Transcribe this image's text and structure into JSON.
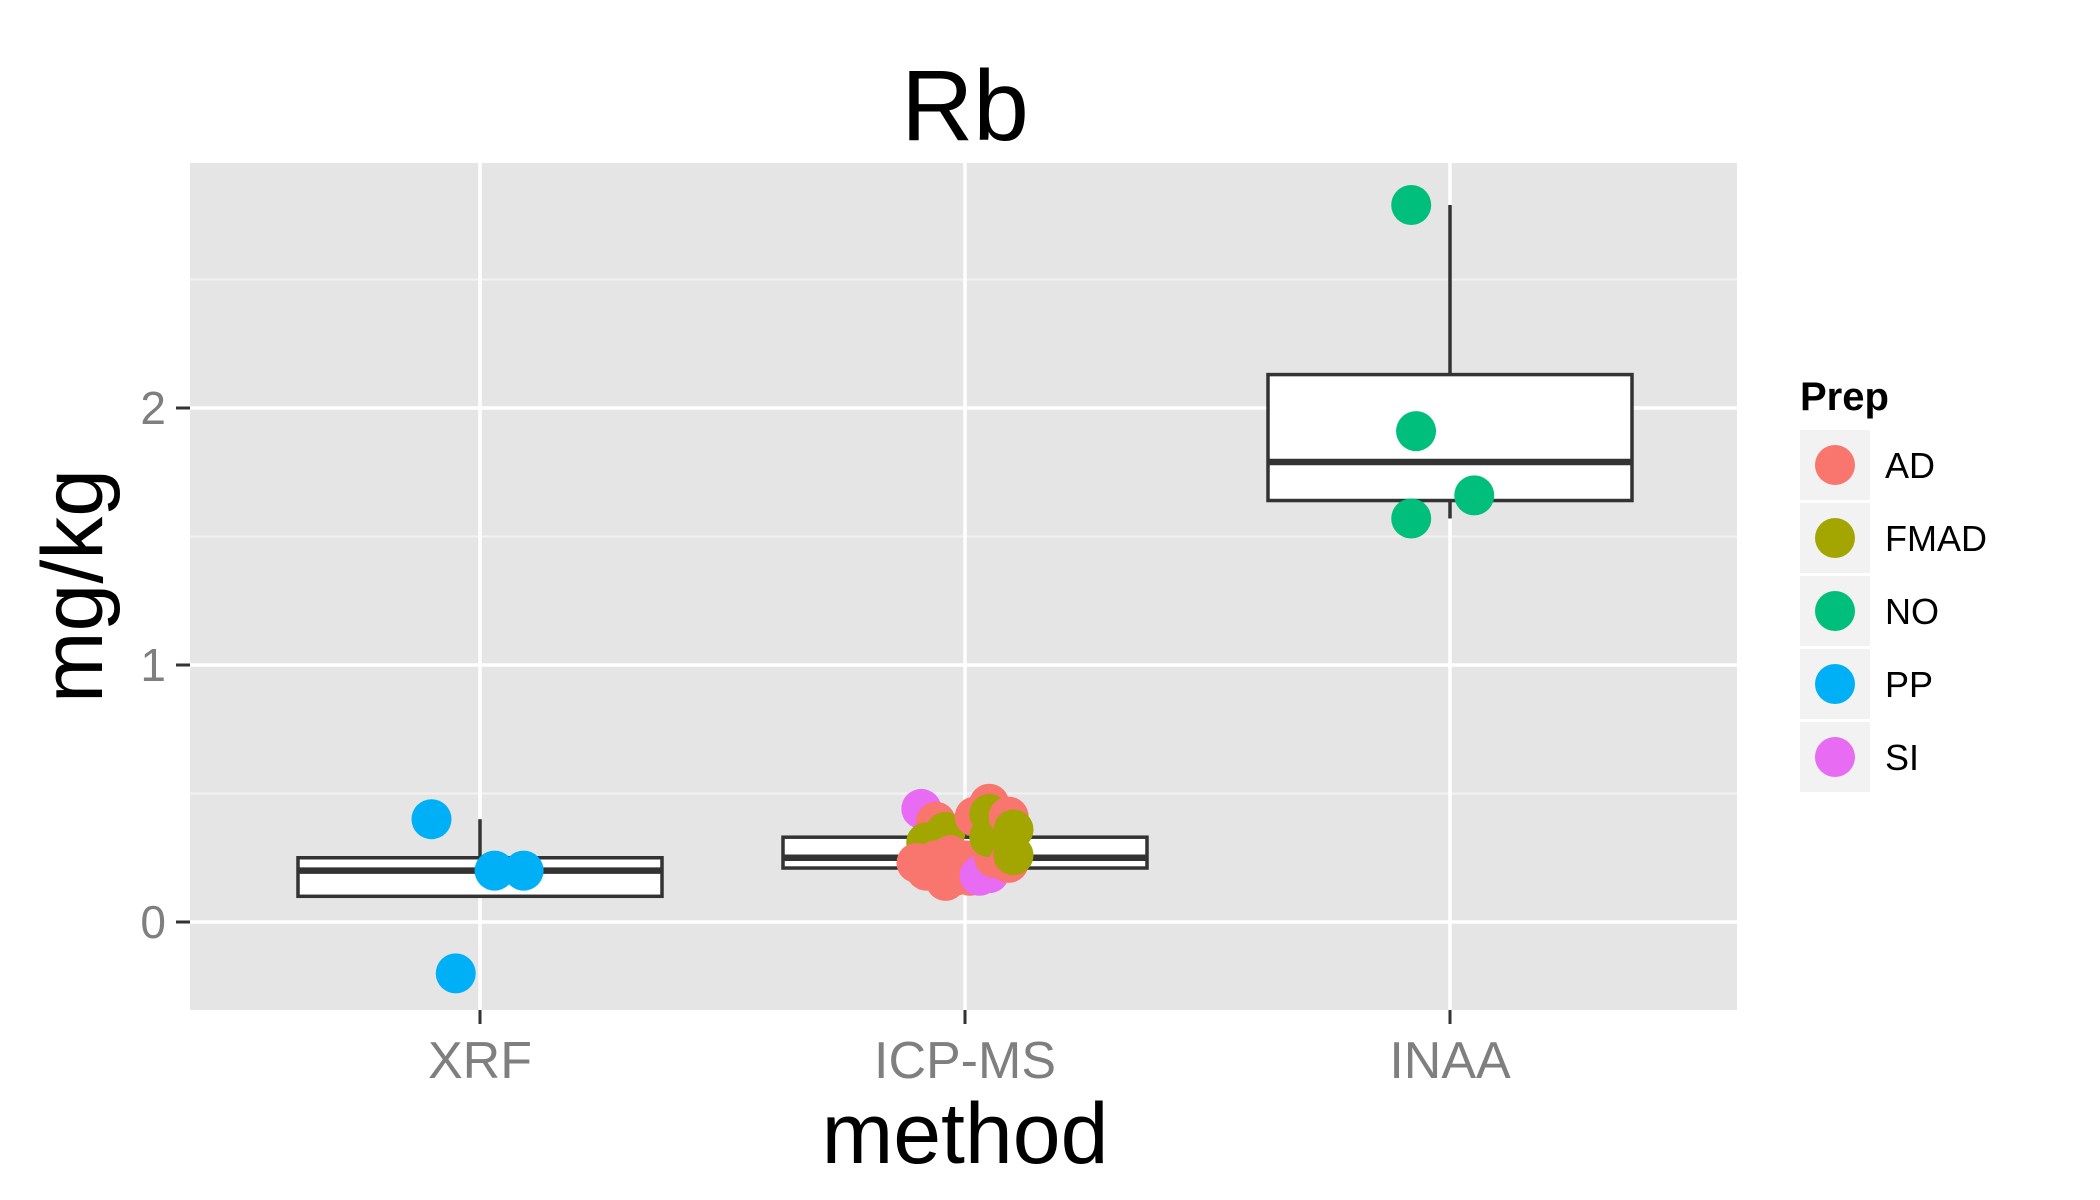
{
  "chart_data": {
    "type": "box",
    "title": "Rb",
    "xlabel": "method",
    "ylabel": "mg/kg",
    "categories": [
      "XRF",
      "ICP-MS",
      "INAA"
    ],
    "y_ticks": [
      0,
      1,
      2
    ],
    "y_tick_labels": [
      "0",
      "1",
      "2"
    ],
    "ylim": [
      -0.34,
      2.95
    ],
    "grid": true,
    "legend": {
      "title": "Prep",
      "position": "right",
      "entries": [
        {
          "name": "AD",
          "color": "#F8766D"
        },
        {
          "name": "FMAD",
          "color": "#A3A500"
        },
        {
          "name": "NO",
          "color": "#00BF7D"
        },
        {
          "name": "PP",
          "color": "#00B0F6"
        },
        {
          "name": "SI",
          "color": "#E76BF3"
        }
      ]
    },
    "boxes": [
      {
        "category": "XRF",
        "whisker_low": 0.1,
        "q1": 0.1,
        "median": 0.2,
        "q3": 0.25,
        "whisker_high": 0.4
      },
      {
        "category": "ICP-MS",
        "whisker_low": 0.21,
        "q1": 0.21,
        "median": 0.25,
        "q3": 0.33,
        "whisker_high": 0.46
      },
      {
        "category": "INAA",
        "whisker_low": 1.57,
        "q1": 1.64,
        "median": 1.79,
        "q3": 2.13,
        "whisker_high": 2.79
      }
    ],
    "points": [
      {
        "category": "XRF",
        "prep": "PP",
        "jitter": -0.1,
        "y": 0.4
      },
      {
        "category": "XRF",
        "prep": "PP",
        "jitter": -0.05,
        "y": -0.2
      },
      {
        "category": "XRF",
        "prep": "PP",
        "jitter": 0.03,
        "y": 0.2
      },
      {
        "category": "XRF",
        "prep": "PP",
        "jitter": 0.09,
        "y": 0.2
      },
      {
        "category": "ICP-MS",
        "prep": "SI",
        "jitter": -0.09,
        "y": 0.44
      },
      {
        "category": "ICP-MS",
        "prep": "AD",
        "jitter": -0.06,
        "y": 0.39
      },
      {
        "category": "ICP-MS",
        "prep": "FMAD",
        "jitter": -0.08,
        "y": 0.31
      },
      {
        "category": "ICP-MS",
        "prep": "FMAD",
        "jitter": -0.04,
        "y": 0.35
      },
      {
        "category": "ICP-MS",
        "prep": "AD",
        "jitter": -0.1,
        "y": 0.23
      },
      {
        "category": "ICP-MS",
        "prep": "AD",
        "jitter": -0.08,
        "y": 0.2
      },
      {
        "category": "ICP-MS",
        "prep": "AD",
        "jitter": -0.06,
        "y": 0.24
      },
      {
        "category": "ICP-MS",
        "prep": "AD",
        "jitter": -0.05,
        "y": 0.19
      },
      {
        "category": "ICP-MS",
        "prep": "AD",
        "jitter": -0.04,
        "y": 0.16
      },
      {
        "category": "ICP-MS",
        "prep": "AD",
        "jitter": -0.03,
        "y": 0.26
      },
      {
        "category": "ICP-MS",
        "prep": "AD",
        "jitter": -0.02,
        "y": 0.18
      },
      {
        "category": "ICP-MS",
        "prep": "AD",
        "jitter": 0.0,
        "y": 0.24
      },
      {
        "category": "ICP-MS",
        "prep": "AD",
        "jitter": 0.02,
        "y": 0.41
      },
      {
        "category": "ICP-MS",
        "prep": "AD",
        "jitter": 0.01,
        "y": 0.18
      },
      {
        "category": "ICP-MS",
        "prep": "SI",
        "jitter": 0.03,
        "y": 0.18
      },
      {
        "category": "ICP-MS",
        "prep": "SI",
        "jitter": 0.05,
        "y": 0.19
      },
      {
        "category": "ICP-MS",
        "prep": "AD",
        "jitter": 0.06,
        "y": 0.25
      },
      {
        "category": "ICP-MS",
        "prep": "AD",
        "jitter": 0.05,
        "y": 0.46
      },
      {
        "category": "ICP-MS",
        "prep": "FMAD",
        "jitter": 0.05,
        "y": 0.42
      },
      {
        "category": "ICP-MS",
        "prep": "FMAD",
        "jitter": 0.05,
        "y": 0.33
      },
      {
        "category": "ICP-MS",
        "prep": "AD",
        "jitter": 0.09,
        "y": 0.41
      },
      {
        "category": "ICP-MS",
        "prep": "AD",
        "jitter": 0.09,
        "y": 0.23
      },
      {
        "category": "ICP-MS",
        "prep": "FMAD",
        "jitter": 0.1,
        "y": 0.36
      },
      {
        "category": "ICP-MS",
        "prep": "FMAD",
        "jitter": 0.1,
        "y": 0.26
      },
      {
        "category": "INAA",
        "prep": "NO",
        "jitter": -0.08,
        "y": 2.79
      },
      {
        "category": "INAA",
        "prep": "NO",
        "jitter": -0.07,
        "y": 1.91
      },
      {
        "category": "INAA",
        "prep": "NO",
        "jitter": -0.08,
        "y": 1.57
      },
      {
        "category": "INAA",
        "prep": "NO",
        "jitter": 0.05,
        "y": 1.66
      }
    ]
  }
}
